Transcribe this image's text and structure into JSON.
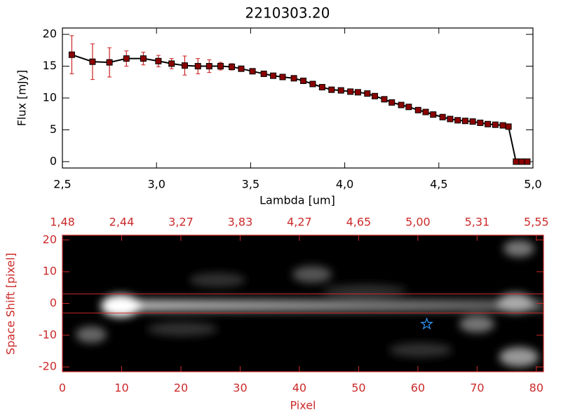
{
  "chart_data": [
    {
      "type": "line",
      "title": "2210303.20",
      "x_label": "Lambda [um]",
      "y_label": "Flux [mJy]",
      "x": [
        2.55,
        2.66,
        2.75,
        2.84,
        2.93,
        3.01,
        3.08,
        3.15,
        3.22,
        3.28,
        3.34,
        3.4,
        3.45,
        3.51,
        3.57,
        3.62,
        3.67,
        3.73,
        3.78,
        3.83,
        3.88,
        3.93,
        3.98,
        4.03,
        4.07,
        4.12,
        4.16,
        4.21,
        4.25,
        4.3,
        4.34,
        4.39,
        4.43,
        4.47,
        4.52,
        4.56,
        4.6,
        4.64,
        4.68,
        4.72,
        4.76,
        4.8,
        4.84,
        4.87,
        4.91,
        4.94,
        4.97
      ],
      "values": [
        16.8,
        15.7,
        15.6,
        16.2,
        16.2,
        15.8,
        15.4,
        15.1,
        15.0,
        15.0,
        15.0,
        14.9,
        14.6,
        14.2,
        13.8,
        13.5,
        13.3,
        13.1,
        12.7,
        12.2,
        11.7,
        11.3,
        11.2,
        11.0,
        10.9,
        10.7,
        10.3,
        9.8,
        9.3,
        8.9,
        8.6,
        8.1,
        7.8,
        7.4,
        7.0,
        6.7,
        6.5,
        6.4,
        6.3,
        6.1,
        5.9,
        5.8,
        5.7,
        5.5,
        0,
        0,
        0
      ],
      "errors": [
        3.0,
        2.8,
        2.3,
        1.2,
        1.0,
        0.9,
        0.8,
        1.5,
        1.2,
        1.0,
        0.6,
        0.5,
        0.3,
        0.2,
        0.2,
        0.2,
        0.2,
        0.2,
        0.2,
        0.2,
        0.2,
        0.2,
        0.2,
        0.2,
        0.2,
        0.2,
        0.2,
        0.2,
        0.2,
        0.2,
        0.2,
        0.2,
        0.2,
        0.2,
        0.2,
        0.2,
        0.2,
        0.2,
        0.2,
        0.2,
        0.2,
        0.2,
        0.2,
        0.2,
        0.2,
        0.2,
        0.2
      ],
      "color": "#000000",
      "marker_color": "#8b0000",
      "error_color": "#cc2222",
      "xlim": [
        2.5,
        5.0
      ],
      "xticks": [
        {
          "value": 2.5,
          "label": "2,5"
        },
        {
          "value": 3.0,
          "label": "3,0"
        },
        {
          "value": 3.5,
          "label": "3,5"
        },
        {
          "value": 4.0,
          "label": "4,0"
        },
        {
          "value": 4.5,
          "label": "4,5"
        },
        {
          "value": 5.0,
          "label": "5,0"
        }
      ],
      "ylim": [
        -1,
        21
      ],
      "yticks": [
        0,
        5,
        10,
        15,
        20
      ]
    },
    {
      "type": "image",
      "x_label": "Pixel",
      "y_label": "Space Shift [pixel]",
      "color": "#cc2a2a",
      "xlim": [
        0,
        81.2
      ],
      "xticks": [
        0,
        10,
        20,
        30,
        40,
        50,
        60,
        70,
        80
      ],
      "x2ticks": [
        {
          "value": 1.48,
          "label": "1,48"
        },
        {
          "value": 2.44,
          "label": "2,44"
        },
        {
          "value": 3.27,
          "label": "3,27"
        },
        {
          "value": 3.83,
          "label": "3,83"
        },
        {
          "value": 4.27,
          "label": "4,27"
        },
        {
          "value": 4.65,
          "label": "4,65"
        },
        {
          "value": 5.0,
          "label": "5,00"
        },
        {
          "value": 5.31,
          "label": "5,31"
        },
        {
          "value": 5.55,
          "label": "5,55"
        }
      ],
      "ylim": [
        -21.5,
        21.5
      ],
      "yticks": [
        -20,
        -10,
        0,
        10,
        20
      ],
      "aperture": [
        3,
        -3
      ],
      "marker": {
        "x": 61.5,
        "y": -6.5,
        "color": "#3399ff"
      }
    }
  ]
}
